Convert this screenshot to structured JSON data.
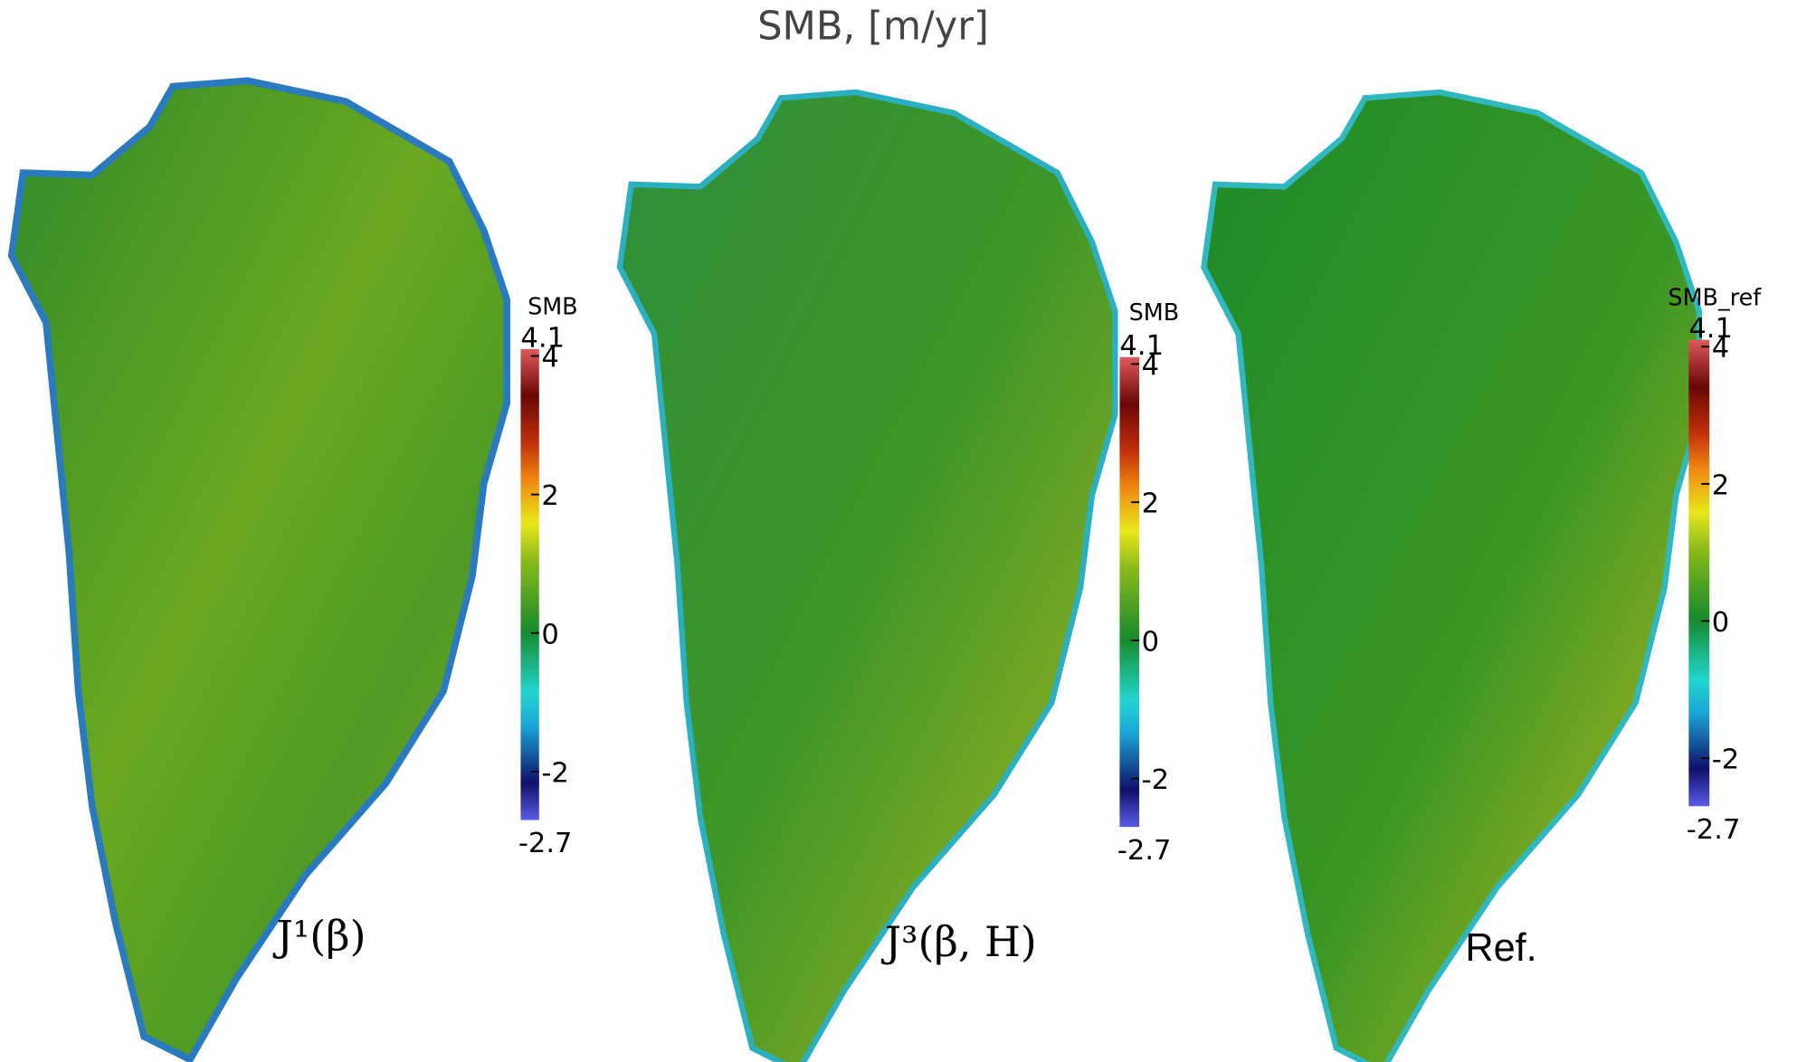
{
  "title": "SMB, [m/yr]",
  "panels": [
    {
      "label": "J¹(β)",
      "colorbar": {
        "title": "SMB",
        "range": [
          -2.7,
          4.1
        ],
        "ticks": [
          -2,
          0,
          2,
          4
        ]
      }
    },
    {
      "label": "J³(β, H)",
      "colorbar": {
        "title": "SMB",
        "range": [
          -2.7,
          4.1
        ],
        "ticks": [
          -2,
          0,
          2,
          4
        ]
      }
    },
    {
      "label": "Ref.",
      "colorbar": {
        "title": "SMB_ref",
        "range": [
          -2.7,
          4.1
        ],
        "ticks": [
          -2,
          0,
          2,
          4
        ]
      }
    }
  ]
}
